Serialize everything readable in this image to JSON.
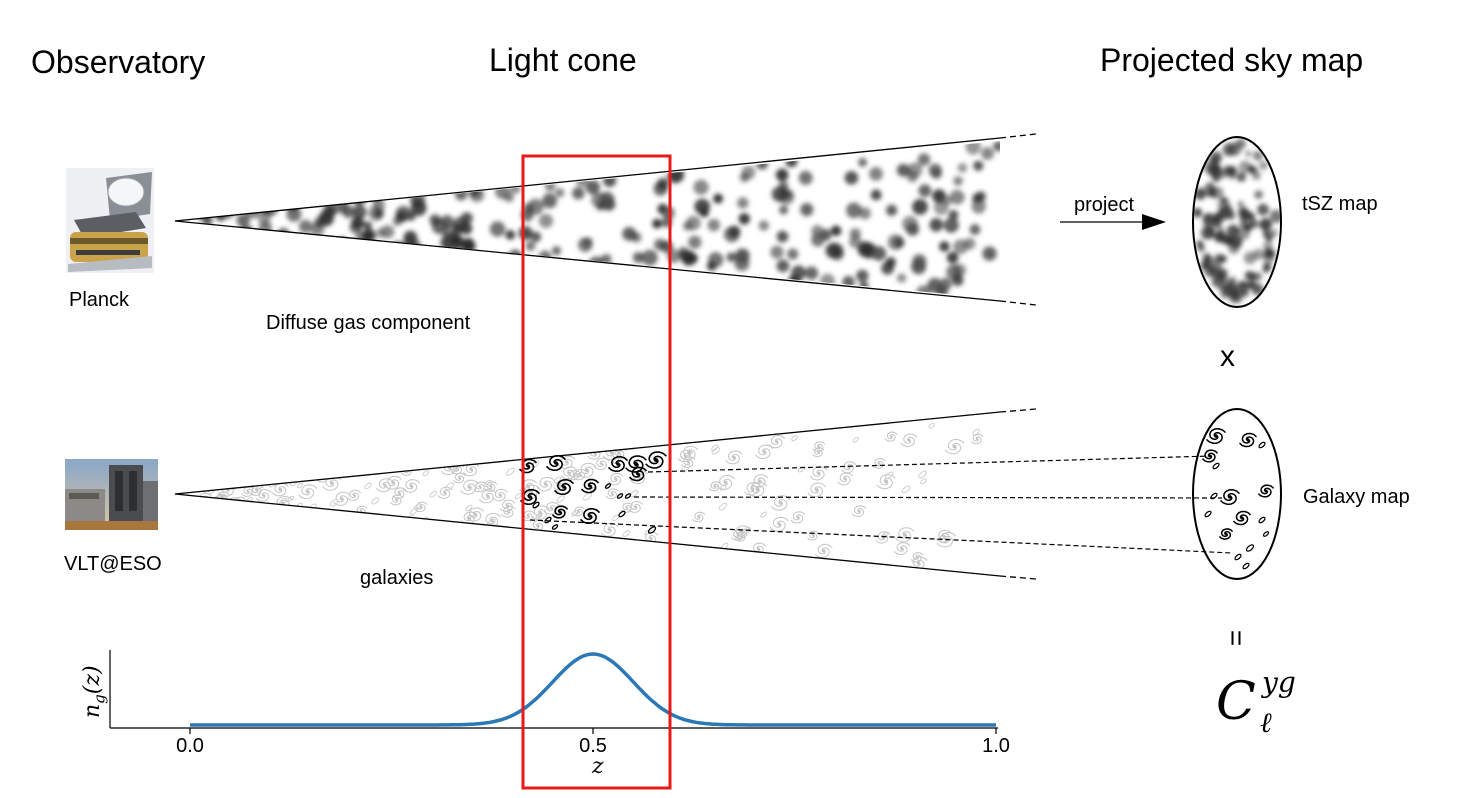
{
  "headings": {
    "observatory": "Observatory",
    "light_cone": "Light cone",
    "projected_sky_map": "Projected sky map"
  },
  "observatories": {
    "top": "Planck",
    "bottom": "VLT@ESO"
  },
  "cone_labels": {
    "top": "Diffuse gas component",
    "bottom": "galaxies"
  },
  "arrow_label": "project",
  "maps": {
    "top": "tSZ map",
    "bottom": "Galaxy map"
  },
  "operators": {
    "times": "x",
    "equals": "="
  },
  "result": {
    "symbol": "C",
    "superscript": "yg",
    "subscript": "ℓ"
  },
  "colors": {
    "highlight_box": "#e8191a",
    "curve": "#2a78b5"
  },
  "icons": {
    "planck": "planck-satellite-icon",
    "vlt": "vlt-observatory-icon"
  },
  "chart_data": {
    "type": "line",
    "xlabel": "z",
    "ylabel": "n_g(z)",
    "x_ticks": [
      "0.0",
      "0.5",
      "1.0"
    ],
    "xlim": [
      0.0,
      1.0
    ],
    "peak_center": 0.5,
    "peak_width": 0.05,
    "highlight_range": [
      0.41,
      0.59
    ]
  }
}
